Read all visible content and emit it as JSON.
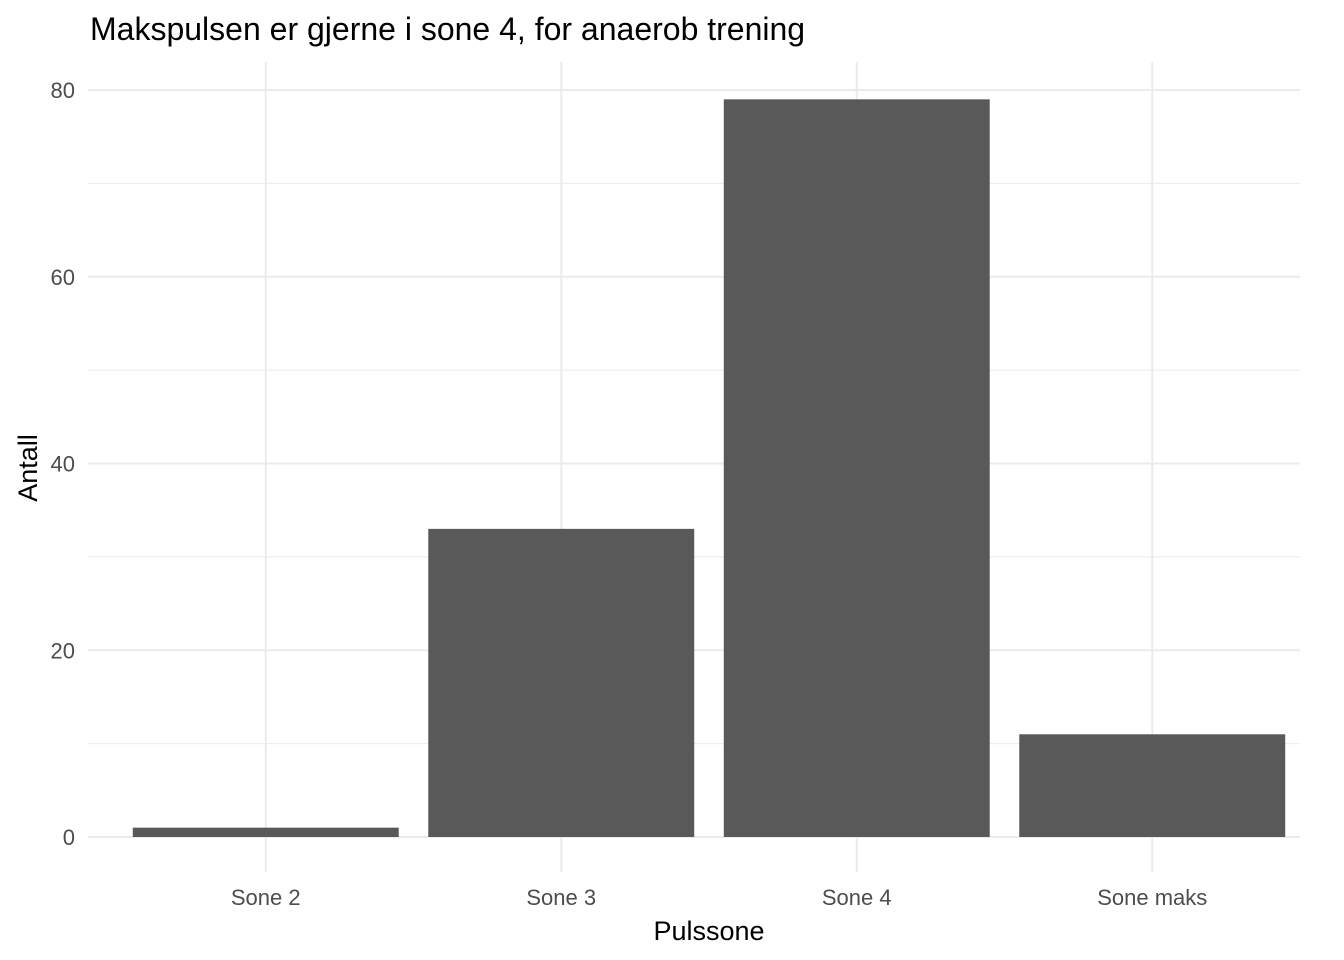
{
  "chart_data": {
    "type": "bar",
    "title": "Makspulsen er gjerne i sone 4, for anaerob trening",
    "xlabel": "Pulssone",
    "ylabel": "Antall",
    "categories": [
      "Sone 2",
      "Sone 3",
      "Sone 4",
      "Sone maks"
    ],
    "values": [
      1,
      33,
      79,
      11
    ],
    "ylim": [
      0,
      82
    ],
    "yticks": [
      0,
      20,
      40,
      60,
      80
    ],
    "grid": true,
    "legend": "none",
    "bar_color": "#595959"
  }
}
